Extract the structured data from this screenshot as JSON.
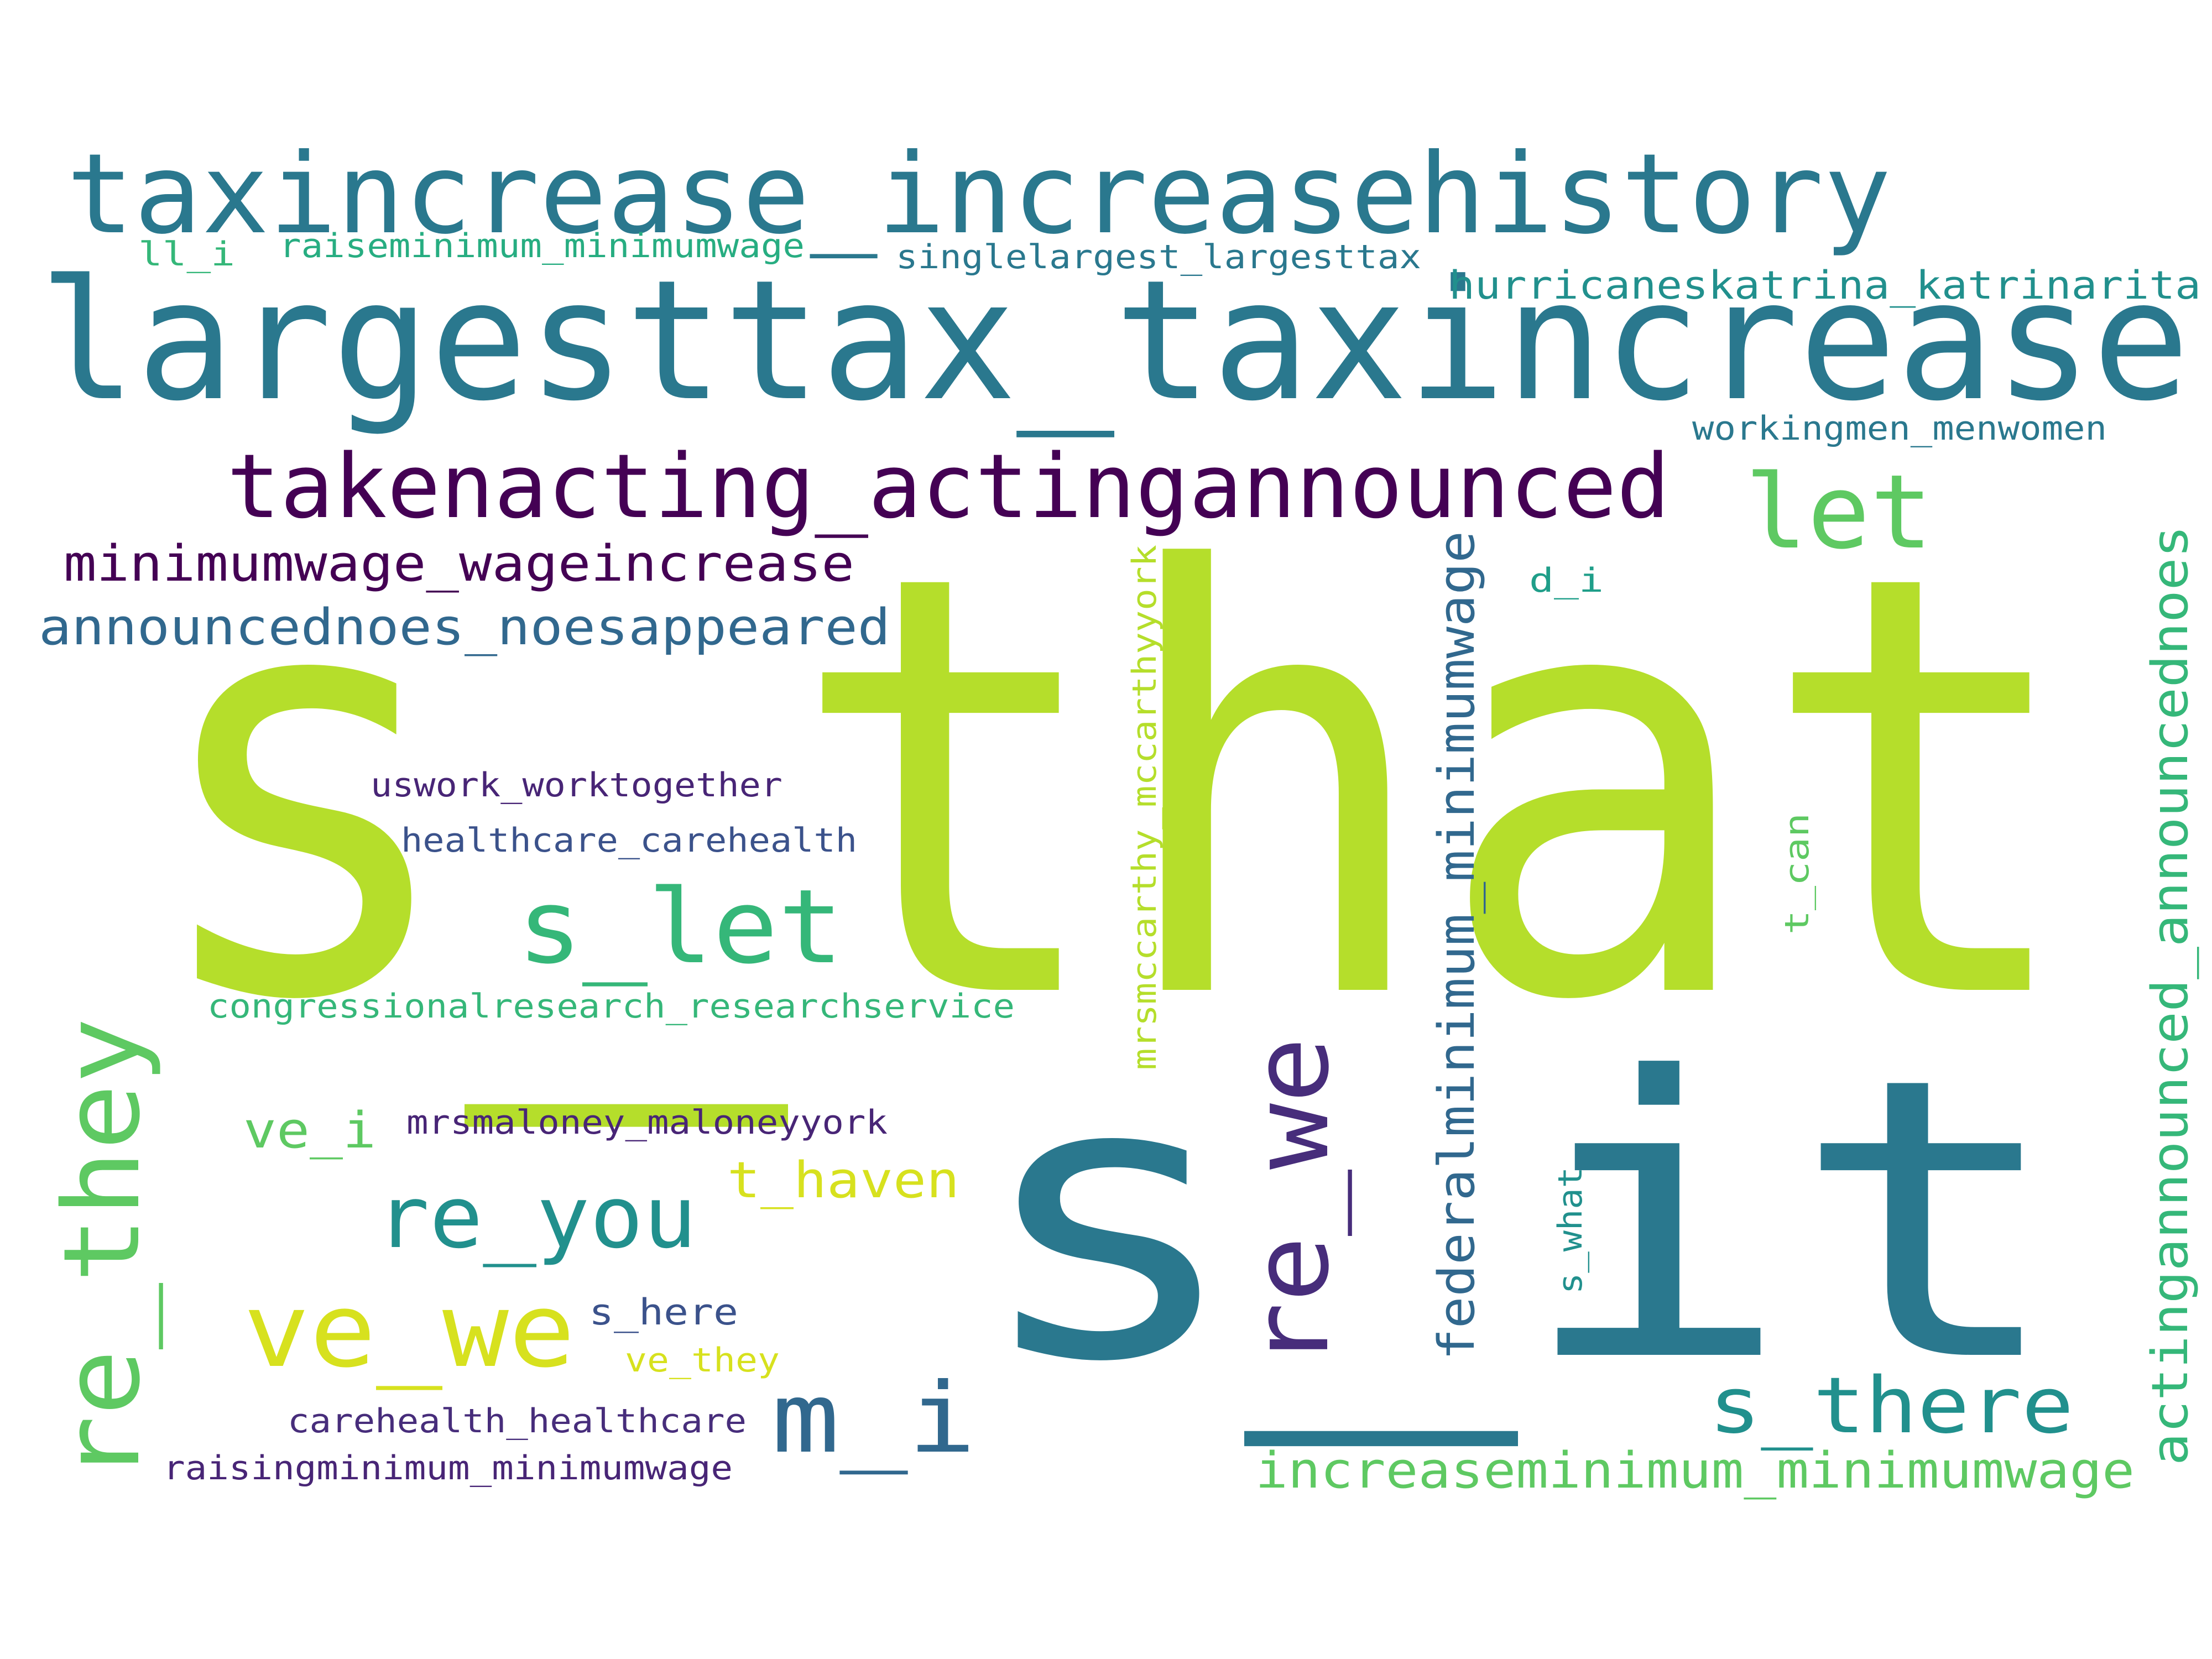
{
  "colors": {
    "background": "#ffffff",
    "lime": "#b5de2b",
    "yellow": "#d7e11e",
    "teal": "#2a788e",
    "blue": "#31688e",
    "steel": "#3b528b",
    "indigo": "#472d7b",
    "purple": "#440154",
    "deep-purple": "#482576",
    "sea": "#21908d",
    "green": "#35b779",
    "light-green": "#5ec962",
    "mint": "#27ad81",
    "cyan-teal": "#1f9e89"
  },
  "words": [
    {
      "id": "s-that",
      "text": "s_that",
      "color": "lime",
      "vertical": false
    },
    {
      "id": "s-it",
      "text": "s_it",
      "color": "teal",
      "vertical": false
    },
    {
      "id": "largesttax-taxincrease",
      "text": "largesttax_taxincrease",
      "color": "teal",
      "vertical": false
    },
    {
      "id": "taxincrease-increasehistory",
      "text": "taxincrease_increasehistory",
      "color": "teal",
      "vertical": false
    },
    {
      "id": "takenacting-actingannounced",
      "text": "takenacting_actingannounced",
      "color": "purple",
      "vertical": false
    },
    {
      "id": "re-they",
      "text": "re_they",
      "color": "light-green",
      "vertical": true
    },
    {
      "id": "re-we",
      "text": "re_we",
      "color": "indigo",
      "vertical": true
    },
    {
      "id": "s-let",
      "text": "s_let",
      "color": "green",
      "vertical": false
    },
    {
      "id": "let",
      "text": "let",
      "color": "light-green",
      "vertical": false
    },
    {
      "id": "ve-we",
      "text": "ve_we",
      "color": "yellow",
      "vertical": false
    },
    {
      "id": "re-you",
      "text": "re_you",
      "color": "sea",
      "vertical": false
    },
    {
      "id": "m-i",
      "text": "m_i",
      "color": "blue",
      "vertical": false
    },
    {
      "id": "s-there",
      "text": "s_there",
      "color": "sea",
      "vertical": false
    },
    {
      "id": "minimumwage-wageincrease",
      "text": "minimumwage_wageincrease",
      "color": "purple",
      "vertical": false
    },
    {
      "id": "announcednoes-noesappeared",
      "text": "announcednoes_noesappeared",
      "color": "blue",
      "vertical": false
    },
    {
      "id": "federalminimum-minimumwage",
      "text": "federalminimum_minimumwage",
      "color": "blue",
      "vertical": true
    },
    {
      "id": "actingannounced-announcednoes",
      "text": "actingannounced_announcednoes",
      "color": "green",
      "vertical": true
    },
    {
      "id": "increaseminimum-minimumwage",
      "text": "increaseminimum_minimumwage",
      "color": "light-green",
      "vertical": false
    },
    {
      "id": "t-haven",
      "text": "t_haven",
      "color": "yellow",
      "vertical": false
    },
    {
      "id": "ve-i",
      "text": "ve_i",
      "color": "light-green",
      "vertical": false
    },
    {
      "id": "hurricaneskatrina-katrinarita",
      "text": "hurricaneskatrina_katrinarita",
      "color": "sea",
      "vertical": false
    },
    {
      "id": "singlelargest-largesttax",
      "text": "singlelargest_largesttax",
      "color": "teal",
      "vertical": false
    },
    {
      "id": "raiseminimum-minimumwage",
      "text": "raiseminimum_minimumwage",
      "color": "mint",
      "vertical": false
    },
    {
      "id": "ll-i",
      "text": "ll_i",
      "color": "green",
      "vertical": false
    },
    {
      "id": "workingmen-menwomen",
      "text": "workingmen_menwomen",
      "color": "teal",
      "vertical": false
    },
    {
      "id": "d-i",
      "text": "d_i",
      "color": "cyan-teal",
      "vertical": false
    },
    {
      "id": "uswork-worktogether",
      "text": "uswork_worktogether",
      "color": "deep-purple",
      "vertical": false
    },
    {
      "id": "healthcare-carehealth",
      "text": "healthcare_carehealth",
      "color": "steel",
      "vertical": false
    },
    {
      "id": "congressionalresearch-researchservice",
      "text": "congressionalresearch_researchservice",
      "color": "green",
      "vertical": false
    },
    {
      "id": "mrsmaloney-maloneyyork",
      "text": "mrsmaloney_maloneyyork",
      "color": "deep-purple",
      "vertical": false
    },
    {
      "id": "mrsmccarthy-mccarthyyork",
      "text": "mrsmccarthy_mccarthyyork",
      "color": "lime",
      "vertical": true
    },
    {
      "id": "t-can",
      "text": "t_can",
      "color": "light-green",
      "vertical": true
    },
    {
      "id": "s-what",
      "text": "s_what",
      "color": "sea",
      "vertical": true
    },
    {
      "id": "s-here",
      "text": "s_here",
      "color": "steel",
      "vertical": false
    },
    {
      "id": "ve-they",
      "text": "ve_they",
      "color": "yellow",
      "vertical": false
    },
    {
      "id": "carehealth-healthcare",
      "text": "carehealth_healthcare",
      "color": "indigo",
      "vertical": false
    },
    {
      "id": "raisingminimum-minimumwage",
      "text": "raisingminimum_minimumwage",
      "color": "deep-purple",
      "vertical": false
    }
  ]
}
